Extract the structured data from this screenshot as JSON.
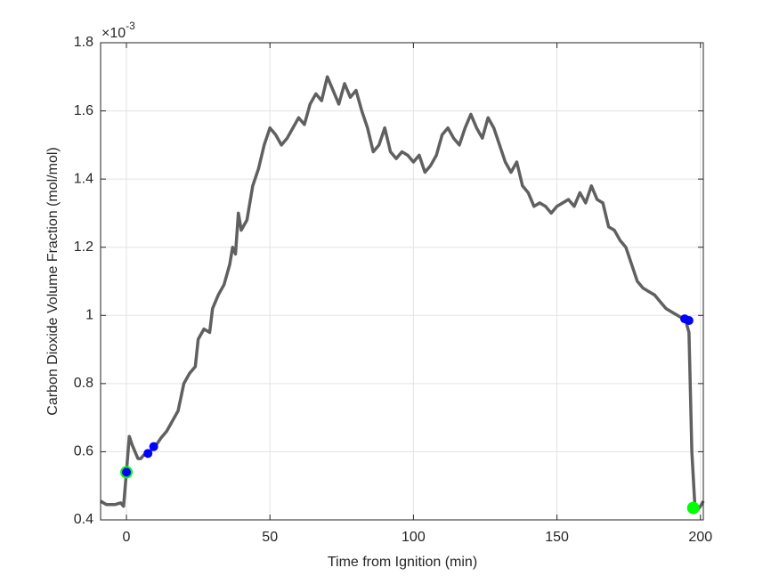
{
  "chart_data": {
    "type": "line",
    "xlabel": "Time from Ignition (min)",
    "ylabel": "Carbon Dioxide Volume Fraction (mol/mol)",
    "y_multiplier_base": "×10",
    "y_multiplier_exponent": "-3",
    "xlim": [
      -9,
      201
    ],
    "ylim": [
      0.4,
      1.8
    ],
    "xticks": [
      0,
      50,
      100,
      150,
      200
    ],
    "yticks": [
      0.4,
      0.6,
      0.8,
      1,
      1.2,
      1.4,
      1.6,
      1.8
    ],
    "grid": true,
    "series": [
      {
        "color": "#606060",
        "style": "line",
        "x": [
          -9,
          -7,
          -4,
          -2,
          -1,
          0,
          1,
          2,
          3,
          4,
          5,
          6,
          7,
          8,
          10,
          12,
          14,
          16,
          18,
          20,
          22,
          24,
          25,
          27,
          29,
          30,
          32,
          34,
          36,
          37,
          38,
          39,
          40,
          42,
          44,
          46,
          48,
          50,
          52,
          54,
          56,
          58,
          60,
          62,
          64,
          66,
          68,
          70,
          72,
          74,
          76,
          78,
          80,
          82,
          84,
          86,
          88,
          90,
          92,
          94,
          96,
          98,
          100,
          102,
          104,
          106,
          108,
          110,
          112,
          114,
          116,
          118,
          120,
          122,
          124,
          126,
          128,
          130,
          132,
          134,
          136,
          138,
          140,
          142,
          144,
          146,
          148,
          150,
          152,
          154,
          156,
          158,
          160,
          162,
          164,
          166,
          168,
          170,
          172,
          174,
          176,
          178,
          180,
          182,
          184,
          186,
          188,
          190,
          192,
          194,
          195,
          196,
          197,
          198,
          199,
          200,
          201
        ],
        "values": [
          0.455,
          0.445,
          0.445,
          0.45,
          0.44,
          0.54,
          0.645,
          0.62,
          0.6,
          0.58,
          0.58,
          0.59,
          0.59,
          0.6,
          0.615,
          0.64,
          0.66,
          0.69,
          0.72,
          0.8,
          0.83,
          0.85,
          0.93,
          0.96,
          0.95,
          1.02,
          1.06,
          1.09,
          1.15,
          1.2,
          1.18,
          1.3,
          1.25,
          1.28,
          1.38,
          1.43,
          1.5,
          1.55,
          1.53,
          1.5,
          1.52,
          1.55,
          1.58,
          1.56,
          1.62,
          1.65,
          1.63,
          1.7,
          1.66,
          1.62,
          1.68,
          1.64,
          1.66,
          1.6,
          1.55,
          1.48,
          1.5,
          1.55,
          1.48,
          1.46,
          1.48,
          1.47,
          1.45,
          1.47,
          1.42,
          1.44,
          1.47,
          1.53,
          1.55,
          1.52,
          1.5,
          1.55,
          1.59,
          1.55,
          1.52,
          1.58,
          1.55,
          1.5,
          1.45,
          1.42,
          1.45,
          1.38,
          1.36,
          1.32,
          1.33,
          1.32,
          1.3,
          1.32,
          1.33,
          1.34,
          1.32,
          1.36,
          1.33,
          1.38,
          1.34,
          1.33,
          1.26,
          1.25,
          1.22,
          1.2,
          1.15,
          1.1,
          1.08,
          1.07,
          1.06,
          1.04,
          1.02,
          1.01,
          1.0,
          0.99,
          0.98,
          0.95,
          0.6,
          0.45,
          0.43,
          0.44,
          0.455
        ]
      },
      {
        "color": "#00ff00",
        "style": "marker",
        "x": [
          0,
          197.5
        ],
        "values": [
          0.54,
          0.435
        ]
      },
      {
        "color": "#0000ff",
        "style": "marker",
        "x": [
          0,
          7.5,
          9.5,
          194.5,
          196
        ],
        "values": [
          0.54,
          0.595,
          0.615,
          0.99,
          0.985
        ]
      }
    ]
  }
}
